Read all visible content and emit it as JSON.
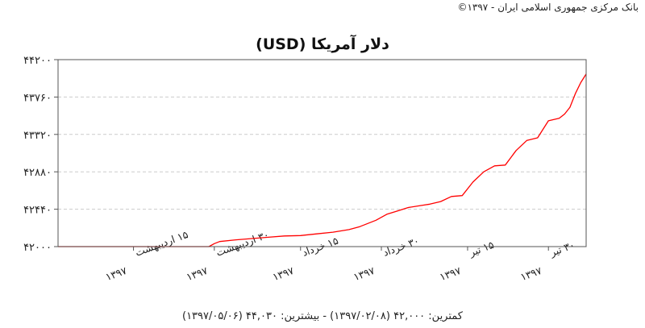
{
  "header": {
    "copyright": "بانک مرکزی جمهوری اسلامی ایران - ۱۳۹۷©"
  },
  "colors": {
    "series": "#ff0000",
    "frame": "#555555",
    "grid": "#cccccc",
    "background": "#ffffff"
  },
  "chart_data": {
    "type": "line",
    "title": "دلار آمریکا (USD)",
    "xlabel": "",
    "ylabel": "",
    "ylim": [
      42000,
      44200
    ],
    "yticks": [
      42000,
      42440,
      42880,
      43320,
      43760,
      44200
    ],
    "ytick_labels": [
      "۴۲۰۰۰",
      "۴۲۴۴۰",
      "۴۲۸۸۰",
      "۴۳۳۲۰",
      "۴۳۷۶۰",
      "۴۴۲۰۰"
    ],
    "grid": "horizontal dashed",
    "xlim": [
      "1397/02/01",
      "1397/05/06"
    ],
    "xtick_dates": [
      "1397/02/15",
      "1397/02/30",
      "1397/03/15",
      "1397/03/30",
      "1397/04/15",
      "1397/04/30"
    ],
    "xtick_labels": [
      {
        "day": "۱۵",
        "month": "اردیبهشت",
        "year": "۱۳۹۷"
      },
      {
        "day": "۳۰",
        "month": "اردیبهشت",
        "year": "۱۳۹۷"
      },
      {
        "day": "۱۵",
        "month": "خرداد",
        "year": "۱۳۹۷"
      },
      {
        "day": "۳۰",
        "month": "خرداد",
        "year": "۱۳۹۷"
      },
      {
        "day": "۱۵",
        "month": "تیر",
        "year": "۱۳۹۷"
      },
      {
        "day": "۳۰",
        "month": "تیر",
        "year": "۱۳۹۷"
      }
    ],
    "series": [
      {
        "points": [
          [
            "1397/02/01",
            42000
          ],
          [
            "1397/02/08",
            42000
          ],
          [
            "1397/02/15",
            42000
          ],
          [
            "1397/02/22",
            42000
          ],
          [
            "1397/02/29",
            42000
          ],
          [
            "1397/02/30",
            42035
          ],
          [
            "1397/02/31",
            42060
          ],
          [
            "1397/03/03",
            42080
          ],
          [
            "1397/03/06",
            42095
          ],
          [
            "1397/03/09",
            42110
          ],
          [
            "1397/03/12",
            42125
          ],
          [
            "1397/03/15",
            42130
          ],
          [
            "1397/03/18",
            42150
          ],
          [
            "1397/03/21",
            42170
          ],
          [
            "1397/03/24",
            42200
          ],
          [
            "1397/03/26",
            42235
          ],
          [
            "1397/03/29",
            42310
          ],
          [
            "1397/03/31",
            42380
          ],
          [
            "1397/04/02",
            42420
          ],
          [
            "1397/04/04",
            42460
          ],
          [
            "1397/04/06",
            42480
          ],
          [
            "1397/04/08",
            42500
          ],
          [
            "1397/04/10",
            42530
          ],
          [
            "1397/04/12",
            42590
          ],
          [
            "1397/04/14",
            42600
          ],
          [
            "1397/04/16",
            42760
          ],
          [
            "1397/04/18",
            42880
          ],
          [
            "1397/04/20",
            42950
          ],
          [
            "1397/04/22",
            42960
          ],
          [
            "1397/04/24",
            43130
          ],
          [
            "1397/04/26",
            43250
          ],
          [
            "1397/04/28",
            43280
          ],
          [
            "1397/04/30",
            43480
          ],
          [
            "1397/05/01",
            43510
          ],
          [
            "1397/05/02",
            43560
          ],
          [
            "1397/05/03",
            43640
          ],
          [
            "1397/05/04",
            43800
          ],
          [
            "1397/05/05",
            43930
          ],
          [
            "1397/05/06",
            44030
          ]
        ]
      }
    ],
    "range_caption": "کمترین: ۴۲,۰۰۰ (۱۳۹۷/۰۲/۰۸) - بیشترین: ۴۴,۰۳۰ (۱۳۹۷/۰۵/۰۶)"
  }
}
